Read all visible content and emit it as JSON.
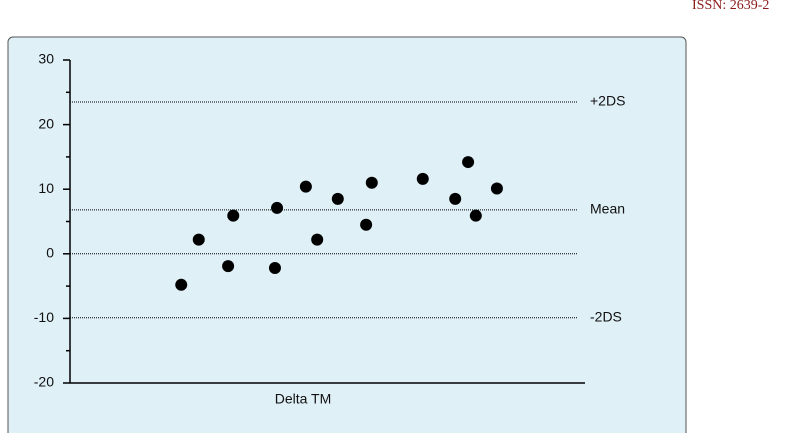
{
  "header": {
    "issn": "ISSN: 2639-2"
  },
  "chart_data": {
    "type": "scatter",
    "x_label": "Delta TM",
    "color": "#000000",
    "x": [
      21.6,
      25.0,
      30.7,
      31.7,
      39.8,
      40.2,
      45.8,
      48.0,
      52.0,
      57.5,
      58.6,
      68.5,
      74.8,
      77.3,
      78.8,
      82.9
    ],
    "values": [
      -4.8,
      2.2,
      -1.9,
      5.9,
      -2.2,
      7.1,
      10.4,
      2.2,
      8.5,
      4.5,
      11.0,
      11.6,
      8.5,
      14.2,
      5.9,
      10.1
    ],
    "xlim": [
      0,
      100
    ],
    "ylim": [
      -20,
      30
    ],
    "yticks": [
      -20,
      -10,
      0,
      10,
      20,
      30
    ],
    "reference_lines": [
      {
        "value": 23.5,
        "label": "+2DS"
      },
      {
        "value": 6.8,
        "label": "Mean"
      },
      {
        "value": -9.9,
        "label": "-2DS"
      }
    ],
    "zero_line": true
  }
}
